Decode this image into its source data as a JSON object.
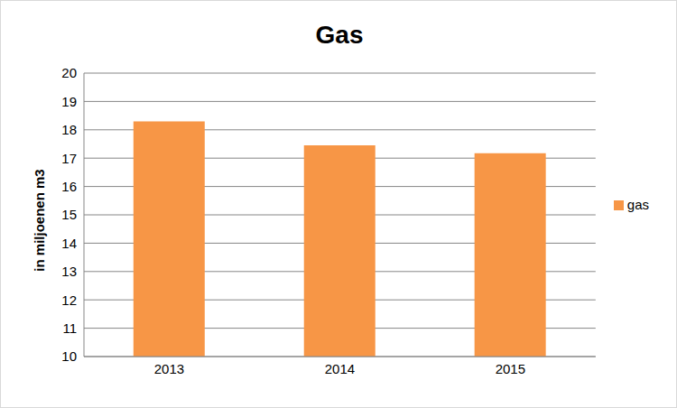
{
  "chart_data": {
    "type": "bar",
    "title": "Gas",
    "y_label": "in miljoenen m3",
    "categories": [
      "2013",
      "2014",
      "2015"
    ],
    "series": [
      {
        "name": "gas",
        "color": "#f79646",
        "values": [
          18.3,
          17.45,
          17.17
        ]
      }
    ],
    "ylim": [
      10,
      20
    ],
    "yticks": [
      10,
      11,
      12,
      13,
      14,
      15,
      16,
      17,
      18,
      19,
      20
    ],
    "grid": true,
    "legend": "right"
  }
}
